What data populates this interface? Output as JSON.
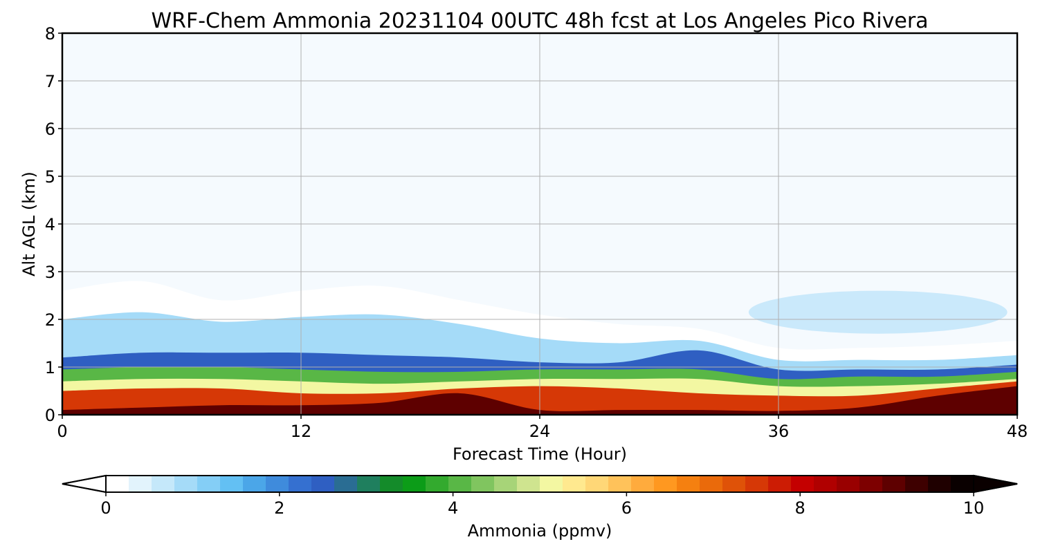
{
  "chart_data": {
    "type": "heatmap",
    "title": "WRF-Chem Ammonia  20231104 00UTC 48h fcst at Los Angeles Pico Rivera",
    "xlabel": "Forecast Time (Hour)",
    "ylabel": "Alt AGL (km)",
    "xlim": [
      0,
      48
    ],
    "ylim": [
      0,
      8
    ],
    "x_ticks": [
      "0",
      "12",
      "24",
      "36",
      "48"
    ],
    "y_ticks": [
      "0",
      "1",
      "2",
      "3",
      "4",
      "5",
      "6",
      "7",
      "8"
    ],
    "grid": true,
    "colorbar": {
      "label": "Ammonia  (ppmv)",
      "range": [
        0,
        10
      ],
      "ticks": [
        "0",
        "2",
        "4",
        "6",
        "8",
        "10"
      ],
      "extend": "both",
      "colors": [
        "#ffffff",
        "#e2f3fc",
        "#c5e8fa",
        "#a5dbf8",
        "#84cef6",
        "#63c0f3",
        "#4ba6e8",
        "#3f8bdc",
        "#3570d0",
        "#2f5fc2",
        "#2a6d93",
        "#1f7f5e",
        "#148b2a",
        "#0c9c18",
        "#33aa2e",
        "#59b746",
        "#80c55f",
        "#a7d478",
        "#cfe48f",
        "#f3f7a2",
        "#ffe98f",
        "#ffd777",
        "#ffc25a",
        "#ffab3d",
        "#ff9820",
        "#f58010",
        "#ea6a0b",
        "#df5208",
        "#d63806",
        "#cc1c04",
        "#c40000",
        "#b00000",
        "#990000",
        "#7d0000",
        "#5e0000",
        "#3e0000",
        "#1f0000",
        "#0a0000"
      ]
    },
    "profiles": [
      {
        "x": 0,
        "heights": [
          0.1,
          0.5,
          0.7,
          0.95,
          1.2,
          2.0,
          2.6
        ]
      },
      {
        "x": 4,
        "heights": [
          0.15,
          0.55,
          0.75,
          1.0,
          1.3,
          2.15,
          2.8
        ]
      },
      {
        "x": 8,
        "heights": [
          0.2,
          0.55,
          0.75,
          1.0,
          1.3,
          1.95,
          2.4
        ]
      },
      {
        "x": 12,
        "heights": [
          0.2,
          0.45,
          0.7,
          0.95,
          1.3,
          2.05,
          2.6
        ]
      },
      {
        "x": 16,
        "heights": [
          0.25,
          0.45,
          0.65,
          0.9,
          1.25,
          2.1,
          2.7
        ]
      },
      {
        "x": 20,
        "heights": [
          0.45,
          0.55,
          0.7,
          0.9,
          1.2,
          1.9,
          2.4
        ]
      },
      {
        "x": 24,
        "heights": [
          0.1,
          0.6,
          0.75,
          0.95,
          1.1,
          1.6,
          2.1
        ]
      },
      {
        "x": 28,
        "heights": [
          0.1,
          0.55,
          0.75,
          0.95,
          1.1,
          1.5,
          1.9
        ]
      },
      {
        "x": 32,
        "heights": [
          0.1,
          0.45,
          0.75,
          0.95,
          1.35,
          1.55,
          1.8
        ]
      },
      {
        "x": 36,
        "heights": [
          0.08,
          0.4,
          0.6,
          0.75,
          0.95,
          1.15,
          1.4
        ]
      },
      {
        "x": 40,
        "heights": [
          0.15,
          0.4,
          0.6,
          0.8,
          0.95,
          1.15,
          1.4
        ]
      },
      {
        "x": 44,
        "heights": [
          0.4,
          0.55,
          0.65,
          0.8,
          0.95,
          1.15,
          1.45
        ]
      },
      {
        "x": 48,
        "heights": [
          0.6,
          0.7,
          0.75,
          0.9,
          1.05,
          1.25,
          1.55
        ]
      }
    ],
    "profile_levels_ppmv": [
      9.2,
      7.5,
      5.0,
      4.0,
      2.6,
      1.0,
      0.2
    ],
    "upper_patch": {
      "x": [
        33,
        46
      ],
      "center": [
        41,
        2.15
      ],
      "value_ppmv": 1.0
    }
  }
}
